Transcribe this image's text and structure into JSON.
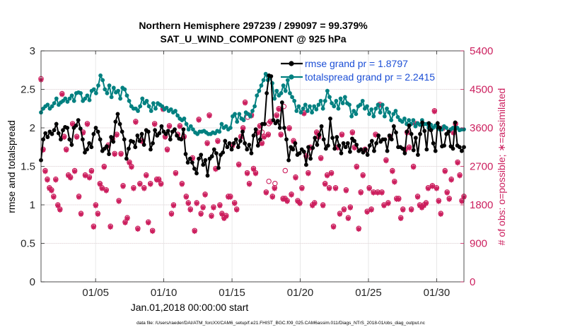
{
  "chart_data": {
    "type": "line",
    "title_line1": "Northern Hemisphere 297239 / 299097 = 99.379%",
    "title_line2": "SAT_U_WIND_COMPONENT @ 925 hPa",
    "xlabel": "Jan.01,2018 00:00:00 start",
    "ylabel_left": "rmse and totalspread",
    "ylabel_right": "# of obs: o=possible; ∗=assimilated",
    "footnote": "data file: /Users/raeder/DAI/ATM_forcXX/CAM6_setup/f.e21.FHIST_BGC.f09_025.CAM6assim.011/Diags_NTrS_2018-01/obs_diag_output.nc",
    "xlim": [
      1.0,
      32.0
    ],
    "ylim_left": [
      0,
      3
    ],
    "ylim_right": [
      0,
      5400
    ],
    "x_ticks": [
      5,
      10,
      15,
      20,
      25,
      30
    ],
    "x_tick_labels": [
      "01/05",
      "01/10",
      "01/15",
      "01/20",
      "01/25",
      "01/30"
    ],
    "y_left_ticks": [
      "0",
      "0.5",
      "1",
      "1.5",
      "2",
      "2.5",
      "3"
    ],
    "y_right_ticks": [
      "0",
      "900",
      "1800",
      "2700",
      "3600",
      "4500",
      "5400"
    ],
    "grid": true,
    "legend_position": "top-right",
    "series": [
      {
        "name": "rmse grand pr = 1.8797",
        "color": "#000000",
        "axis": "left",
        "values": [
          1.58,
          1.85,
          1.93,
          1.88,
          1.95,
          1.92,
          1.97,
          2.05,
          1.93,
          1.85,
          1.97,
          2.01,
          2.0,
          1.85,
          1.78,
          2.0,
          2.03,
          2.1,
          1.99,
          1.85,
          1.68,
          1.72,
          1.8,
          1.75,
          1.92,
          2.0,
          1.95,
          1.85,
          1.7,
          1.73,
          1.76,
          1.66,
          1.88,
          1.82,
          2.08,
          2.18,
          2.05,
          1.95,
          1.85,
          1.6,
          1.73,
          1.83,
          1.82,
          1.75,
          1.9,
          1.83,
          1.92,
          1.78,
          1.97,
          1.95,
          1.72,
          1.8,
          1.97,
          1.9,
          1.93,
          2.02,
          1.95,
          1.92,
          1.96,
          1.85,
          1.95,
          1.98,
          1.9,
          1.86,
          1.85,
          1.98,
          1.66,
          1.55,
          1.6,
          1.55,
          1.47,
          1.41,
          1.6,
          1.65,
          1.52,
          1.58,
          1.38,
          1.6,
          1.63,
          1.72,
          1.67,
          1.48,
          1.65,
          1.68,
          1.83,
          1.75,
          1.8,
          1.72,
          1.8,
          1.85,
          1.75,
          1.83,
          1.95,
          1.8,
          1.72,
          1.78,
          1.67,
          1.9,
          1.98,
          1.77,
          1.85,
          2.05,
          2.05,
          2.45,
          2.68,
          2.67,
          2.1,
          2.06,
          2.09,
          2.0,
          2.33,
          2.0,
          1.85,
          1.58,
          1.75,
          1.72,
          1.8,
          1.65,
          1.67,
          1.72,
          1.69,
          1.52,
          1.75,
          1.6,
          1.74,
          1.87,
          1.78,
          1.91,
          2.02,
          1.85,
          1.73,
          1.77,
          2.12,
          1.87,
          1.73,
          1.88,
          1.77,
          1.67,
          1.8,
          1.75,
          1.8,
          1.69,
          1.86,
          1.83,
          1.78,
          1.7,
          1.72,
          1.68,
          1.72,
          1.65,
          1.77,
          1.83,
          1.7,
          1.8,
          1.9,
          1.82,
          1.85,
          1.85,
          1.7,
          1.9,
          1.85,
          2.02,
          1.94,
          1.75,
          1.75,
          1.73,
          1.67,
          1.95,
          2.03,
          1.92,
          1.71,
          1.87,
          1.65,
          1.92,
          2.07,
          1.96,
          1.72,
          2.06,
          1.97,
          1.8,
          1.7,
          2.06,
          2.0,
          1.76,
          1.77,
          1.92,
          1.95,
          1.76,
          1.73,
          2.07,
          1.77,
          1.75,
          1.7,
          1.75
        ]
      },
      {
        "name": "totalspread grand pr = 2.2415",
        "color": "#008080",
        "axis": "left",
        "values": [
          2.2,
          2.25,
          2.28,
          2.3,
          2.25,
          2.28,
          2.32,
          2.38,
          2.3,
          2.33,
          2.35,
          2.38,
          2.34,
          2.38,
          2.42,
          2.35,
          2.45,
          2.46,
          2.45,
          2.35,
          2.38,
          2.42,
          2.36,
          2.48,
          2.5,
          2.45,
          2.55,
          2.68,
          2.62,
          2.5,
          2.45,
          2.55,
          2.4,
          2.52,
          2.46,
          2.48,
          2.38,
          2.52,
          2.5,
          2.42,
          2.35,
          2.28,
          2.25,
          2.25,
          2.22,
          2.28,
          2.38,
          2.32,
          2.35,
          2.28,
          2.22,
          2.32,
          2.25,
          2.32,
          2.3,
          2.28,
          2.24,
          2.26,
          2.22,
          2.24,
          2.2,
          2.22,
          2.16,
          2.12,
          2.1,
          2.12,
          2.05,
          1.98,
          2.02,
          1.98,
          1.94,
          1.92,
          1.95,
          1.95,
          1.96,
          1.94,
          1.92,
          1.92,
          1.94,
          1.93,
          1.96,
          1.95,
          2.05,
          2.0,
          2.02,
          1.98,
          2.0,
          2.15,
          2.18,
          2.08,
          2.18,
          2.12,
          2.1,
          2.2,
          2.18,
          2.15,
          2.22,
          2.28,
          2.42,
          2.48,
          2.55,
          2.62,
          2.7,
          2.62,
          2.65,
          2.58,
          2.38,
          2.48,
          2.42,
          2.45,
          2.55,
          2.48,
          2.62,
          2.45,
          2.4,
          2.35,
          2.22,
          2.28,
          2.2,
          2.25,
          2.3,
          2.22,
          2.28,
          2.2,
          2.28,
          2.24,
          2.3,
          2.35,
          2.25,
          2.35,
          2.48,
          2.4,
          2.32,
          2.28,
          2.35,
          2.25,
          2.38,
          2.32,
          2.4,
          2.32,
          2.3,
          2.15,
          2.22,
          2.18,
          2.28,
          2.3,
          2.35,
          2.25,
          2.28,
          2.18,
          2.24,
          2.15,
          2.25,
          2.3,
          2.2,
          2.3,
          2.15,
          2.25,
          2.2,
          2.1,
          2.18,
          2.22,
          2.14,
          2.1,
          2.08,
          2.12,
          2.05,
          2.1,
          2.05,
          2.1,
          2.02,
          2.06,
          2.04,
          2.1,
          2.05,
          2.05,
          2.0,
          2.04,
          2.0,
          2.03,
          2.0,
          1.98,
          1.98,
          2.02,
          2.0,
          1.95,
          1.98,
          2.0,
          1.98,
          2.0,
          1.97,
          1.98,
          1.98
        ]
      },
      {
        "name": "# obs possible",
        "color": "#cc1f5e",
        "axis": "right",
        "marker": "o",
        "values": [
          4750,
          3100,
          2600,
          2400,
          2200,
          2150,
          2000,
          2400,
          1800,
          1700,
          4400,
          3400,
          3100,
          2500,
          2450,
          3700,
          2600,
          3400,
          2000,
          1600,
          3500,
          2500,
          3700,
          2450,
          2600,
          1300,
          1800,
          1600,
          2300,
          2200,
          2700,
          2150,
          3200,
          1300,
          3350,
          3000,
          3450,
          1900,
          3000,
          2250,
          1400,
          1500,
          2800,
          2700,
          2200,
          3750,
          1250,
          2300,
          3300,
          2200,
          2500,
          1400,
          2300,
          1200,
          3700,
          2400,
          2400,
          2300,
          4050,
          3400,
          3100,
          3650,
          1600,
          1800,
          2550,
          3450,
          3650,
          2300,
          3400,
          2000,
          1850,
          1700,
          2900,
          1200,
          1850,
          3800,
          1600,
          1750,
          2050,
          3250,
          3900,
          1550,
          1750,
          2650,
          3300,
          1800,
          1600,
          1500,
          1550,
          2000,
          2000,
          3200,
          1850,
          1700,
          2750,
          3400,
          3600,
          4200,
          2550,
          2300,
          3900,
          2650,
          2550,
          3500,
          3650,
          3250,
          3400,
          2100,
          3450,
          3750,
          2000,
          2200,
          3900,
          4050,
          3450,
          1950,
          1950,
          1900,
          3600,
          2050,
          3300,
          2450,
          1900,
          1850,
          2200,
          3950,
          2950,
          2550,
          3150,
          1800,
          1850,
          3500,
          3400,
          2900,
          1800,
          2300,
          2500,
          2200,
          2550,
          1300,
          2200,
          3150,
          1600,
          3450,
          1700,
          2150,
          1500,
          1750,
          3500,
          3150,
          2700,
          1250,
          2100,
          2500,
          3100,
          1650,
          2200,
          1700,
          2100,
          3450,
          2100,
          4150,
          2100,
          1800,
          2850,
          1850,
          3400,
          2600,
          2350,
          1950,
          1950,
          1500,
          1700,
          3100,
          3500,
          3150,
          1700,
          2700,
          3700,
          2000,
          1800,
          1750,
          1800,
          1850,
          2200,
          3600,
          2250,
          4000,
          2200,
          1900,
          1600,
          3600,
          2600,
          2100,
          1950,
          2400,
          3500,
          3700,
          2800,
          2500,
          1900,
          2000
        ]
      },
      {
        "name": "# obs assimilated",
        "color": "#cc1f5e",
        "axis": "right",
        "marker": "*",
        "values": [
          4720,
          3080,
          2580,
          2380,
          2180,
          2130,
          1980,
          2380,
          1780,
          1680,
          4380,
          3380,
          3080,
          2480,
          2430,
          3680,
          2580,
          3380,
          1980,
          1580,
          3480,
          2480,
          3680,
          2430,
          2580,
          1280,
          1780,
          1580,
          2280,
          2180,
          2680,
          2130,
          3180,
          1280,
          3330,
          2980,
          3430,
          1880,
          2980,
          2230,
          1380,
          1480,
          2780,
          2680,
          2180,
          3730,
          1230,
          2280,
          3280,
          2180,
          2480,
          1380,
          2280,
          1180,
          3680,
          2380,
          2380,
          2280,
          4030,
          3380,
          3080,
          3630,
          1580,
          1780,
          2530,
          3430,
          3630,
          2280,
          3380,
          1980,
          1830,
          1680,
          2880,
          1180,
          1830,
          3780,
          1580,
          1730,
          2030,
          3230,
          3880,
          1530,
          1730,
          2630,
          3280,
          1780,
          1580,
          1480,
          1530,
          1980,
          1980,
          3180,
          1830,
          1680,
          2730,
          3380,
          3580,
          4180,
          2530,
          2280,
          3880,
          2630,
          2530,
          3480,
          3630,
          3230,
          3380,
          2080,
          3430,
          3730,
          1980,
          2180,
          3880,
          4030,
          3430,
          1930,
          1930,
          1880,
          3580,
          2030,
          3280,
          2430,
          1880,
          1830,
          2180,
          3930,
          2930,
          2530,
          3130,
          1780,
          1830,
          3480,
          3380,
          2880,
          1780,
          2280,
          2480,
          2180,
          2530,
          1280,
          2180,
          3130,
          1580,
          3430,
          1680,
          2130,
          1480,
          1730,
          3480,
          3130,
          2680,
          1230,
          2080,
          2480,
          3080,
          1630,
          2180,
          1680,
          2080,
          3430,
          2080,
          4130,
          2080,
          1780,
          2830,
          1830,
          3380,
          2580,
          2330,
          1930,
          1930,
          1480,
          1680,
          3080,
          3480,
          3130,
          1680,
          2680,
          3680,
          1980,
          1780,
          1730,
          1780,
          1830,
          2180,
          3580,
          2230,
          3980,
          2180,
          1880,
          1580,
          3580,
          2580,
          2080,
          1930,
          2380,
          3480,
          3680,
          2780,
          2480,
          1880,
          1980
        ]
      }
    ],
    "possible_extra_markers": [
      {
        "x": 16.15,
        "value": 3850
      },
      {
        "x": 17.2,
        "value": 3500
      },
      {
        "x": 17.7,
        "value": 3700
      },
      {
        "x": 18.8,
        "value": 4100
      },
      {
        "x": 17.7,
        "value": 2350
      },
      {
        "x": 18.15,
        "value": 2300
      },
      {
        "x": 18.9,
        "value": 2600
      }
    ]
  }
}
